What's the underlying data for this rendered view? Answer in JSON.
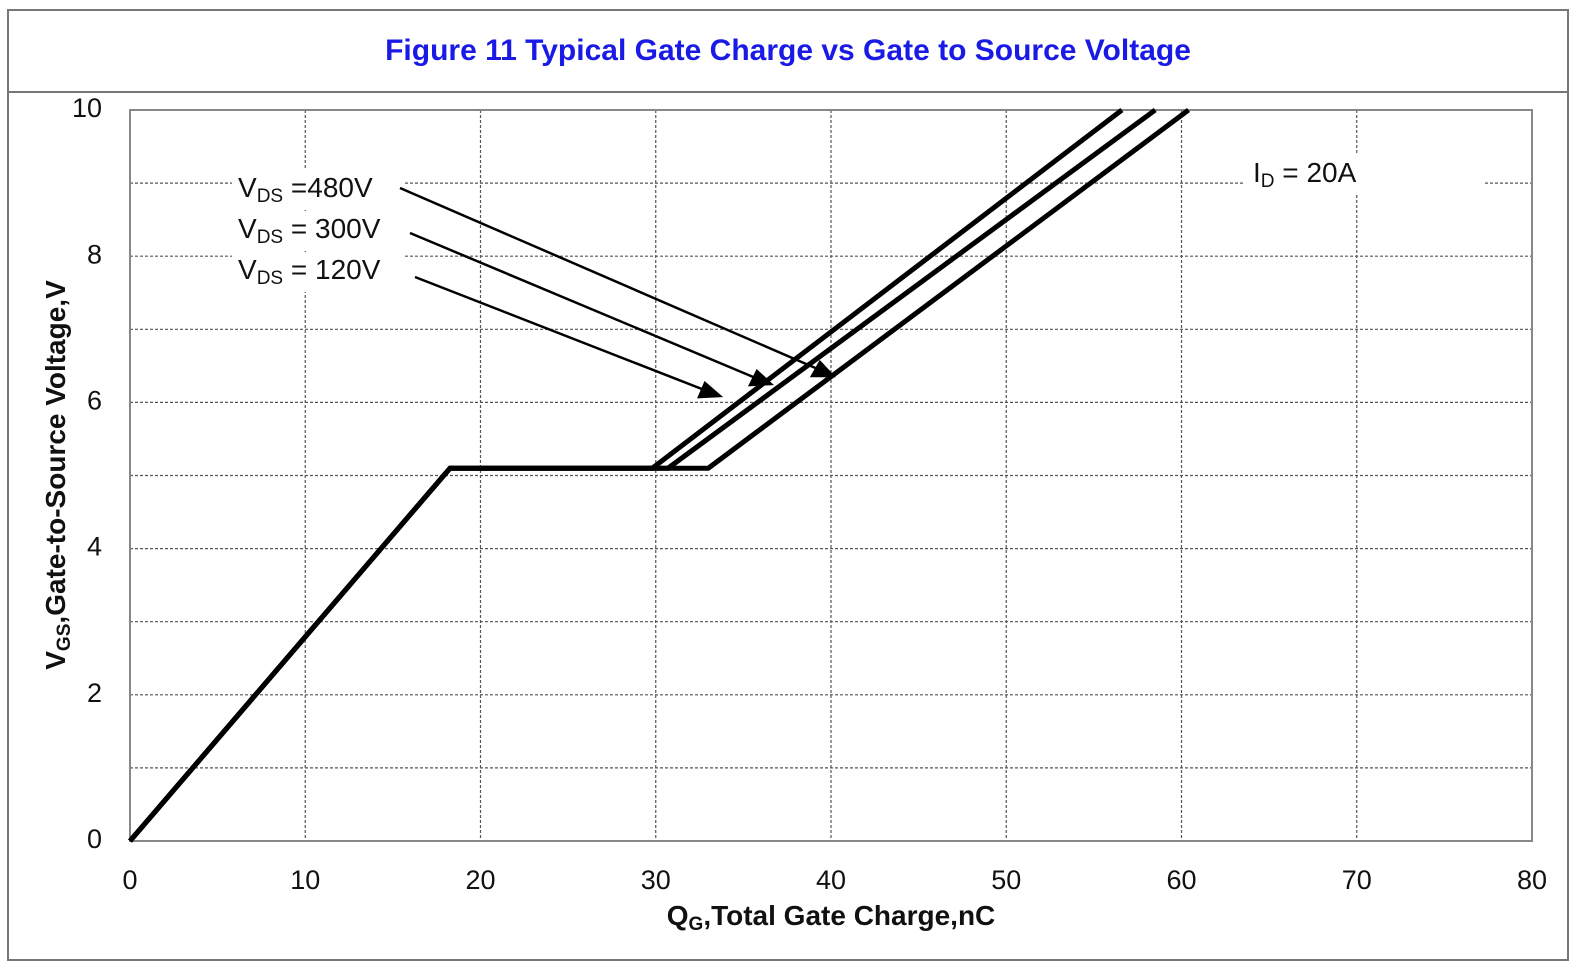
{
  "chart_data": {
    "type": "line",
    "title": "Figure 11 Typical Gate Charge vs Gate to Source Voltage",
    "x_label": [
      "Q",
      "G",
      ",Total Gate Charge,nC"
    ],
    "y_label": [
      "V",
      "GS",
      ",Gate-to-Source Voltage,V"
    ],
    "xlim": [
      0,
      80
    ],
    "ylim": [
      0,
      10
    ],
    "xticks": [
      0,
      10,
      20,
      30,
      40,
      50,
      60,
      70,
      80
    ],
    "yticks": [
      0,
      2,
      4,
      6,
      8,
      10
    ],
    "y_minor_grid": [
      1,
      3,
      5,
      7,
      9
    ],
    "grid": true,
    "color": "#000000",
    "series": [
      {
        "label": [
          "V",
          "DS",
          " =480V"
        ],
        "x": [
          0,
          18.26,
          33.0,
          60.4
        ],
        "values": [
          0,
          5.1,
          5.1,
          10
        ]
      },
      {
        "label": [
          "V",
          "DS",
          " = 300V"
        ],
        "x": [
          0,
          18.26,
          30.7,
          58.5
        ],
        "values": [
          0,
          5.1,
          5.1,
          10
        ]
      },
      {
        "label": [
          "V",
          "DS",
          " = 120V"
        ],
        "x": [
          0,
          18.26,
          29.8,
          56.6
        ],
        "values": [
          0,
          5.1,
          5.1,
          10
        ]
      }
    ],
    "annotation": [
      "I",
      "D",
      " = 20A"
    ]
  }
}
